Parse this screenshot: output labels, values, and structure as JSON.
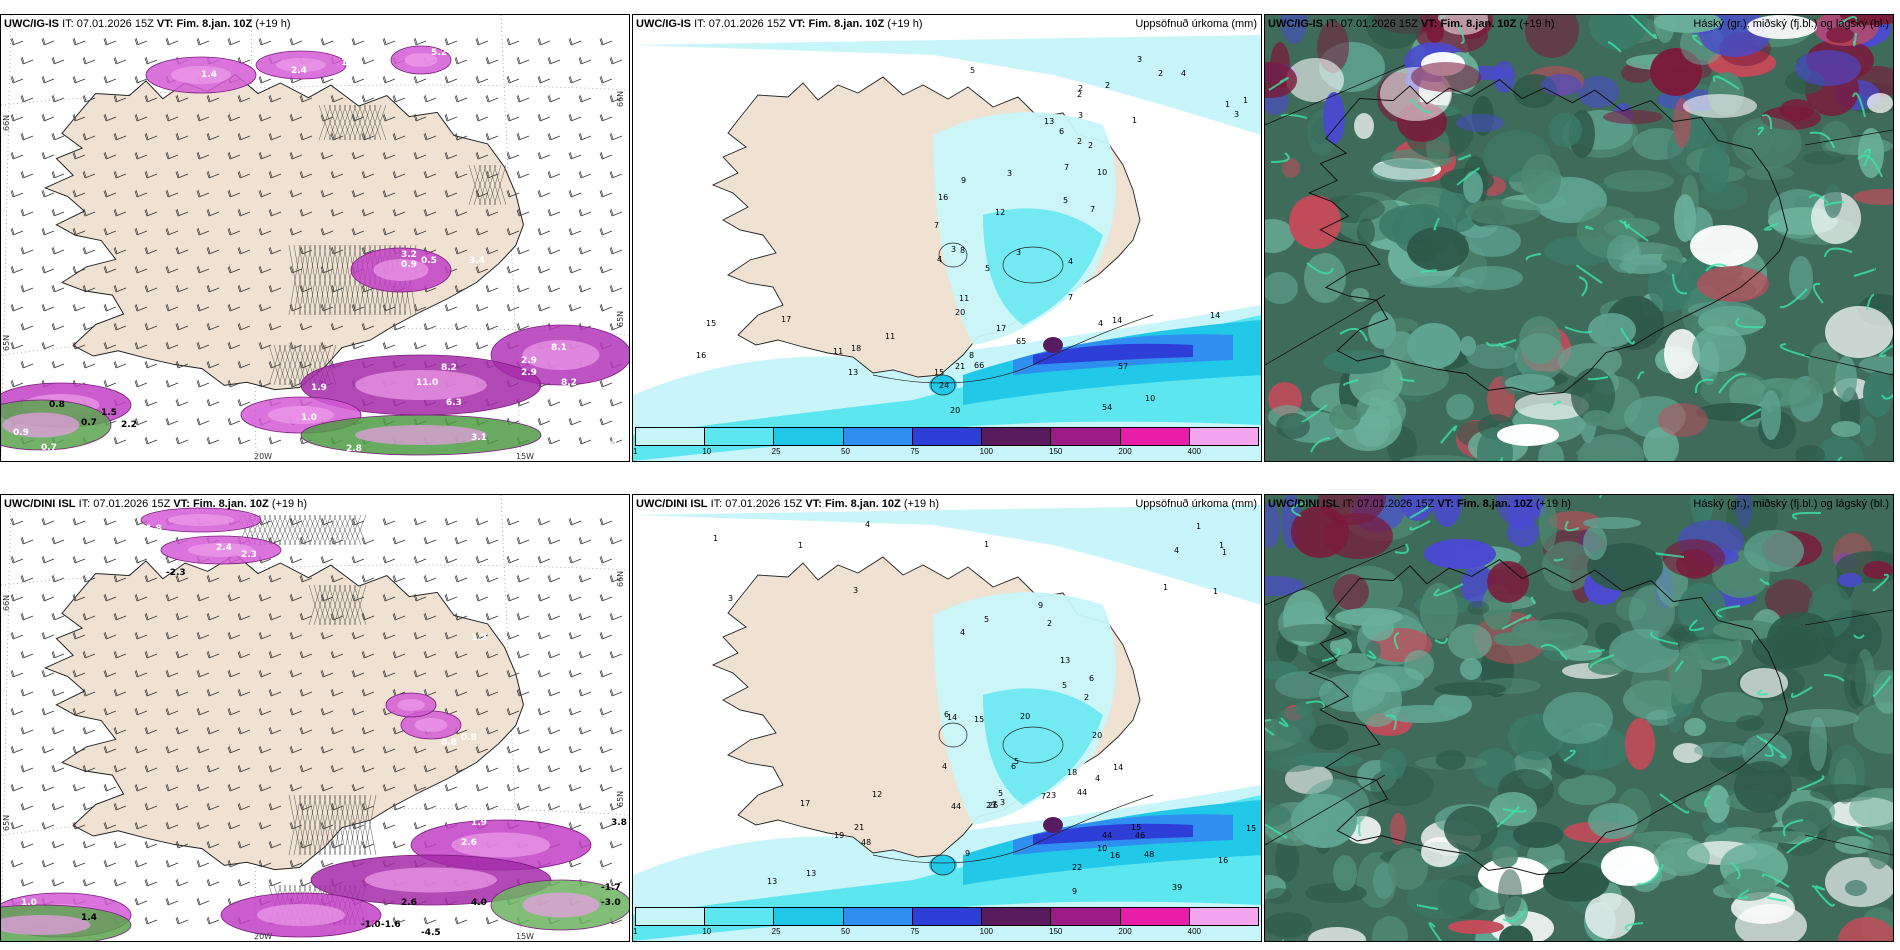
{
  "panels": {
    "top_left": {
      "model": "UWC/IG-IS",
      "it_label": "IT:",
      "it_value": "07.01.2026 15Z",
      "vt_label": "VT:",
      "vt_value": "Fim. 8.jan. 10Z",
      "offset": "(+19 h)"
    },
    "top_mid": {
      "model": "UWC/IG-IS",
      "it_label": "IT:",
      "it_value": "07.01.2026 15Z",
      "vt_label": "VT:",
      "vt_value": "Fim. 8.jan. 10Z",
      "offset": "(+19 h)",
      "right_title": "Uppsöfnuð úrkoma (mm)"
    },
    "top_right": {
      "model": "UWC/IG-IS",
      "it_label": "IT:",
      "it_value": "07.01.2026 15Z",
      "vt_label": "VT:",
      "vt_value": "Fim. 8.jan. 10Z",
      "offset": "(+19 h)",
      "right_title": "Háský (gr.), miðský (fj.bl.) og lágský (bl.)"
    },
    "bot_left": {
      "model": "UWC/DINI ISL",
      "it_label": "IT:",
      "it_value": "07.01.2026 15Z",
      "vt_label": "VT:",
      "vt_value": "Fim. 8.jan. 10Z",
      "offset": "(+19 h)"
    },
    "bot_mid": {
      "model": "UWC/DINI ISL",
      "it_label": "IT:",
      "it_value": "07.01.2026 15Z",
      "vt_label": "VT:",
      "vt_value": "Fim. 8.jan. 10Z",
      "offset": "(+19 h)",
      "right_title": "Uppsöfnuð úrkoma (mm)"
    },
    "bot_right": {
      "model": "UWC/DINI ISL",
      "it_label": "IT:",
      "it_value": "07.01.2026 15Z",
      "vt_label": "VT:",
      "vt_value": "Fim. 8.jan. 10Z",
      "offset": "(+19 h)",
      "right_title": "Háský (gr.), miðský (fj.bl.) og lágský (bl.)"
    }
  },
  "axis_labels": {
    "lat_a": "66N",
    "lat_b": "65N",
    "lon_a": "20W",
    "lon_b": "15W"
  },
  "colorbar": {
    "ticks": [
      "1",
      "10",
      "25",
      "50",
      "75",
      "100",
      "150",
      "200",
      "400"
    ],
    "colors": [
      "#c8f5f9",
      "#5ce6ef",
      "#22c8e8",
      "#2f8ff0",
      "#2e3fd8",
      "#5a1b5e",
      "#9c1a85",
      "#e81ea8",
      "#f3a6ef"
    ]
  },
  "top_left_values": [
    "1.4",
    "2.4",
    "1.8",
    "1.7",
    "5.2",
    "3.2",
    "0.9",
    "0.5",
    "3.4",
    "2.9",
    "8.2",
    "11.0",
    "6.3",
    "1.9",
    "2.9",
    "8.1",
    "8.2",
    "5.3",
    "0.9",
    "0.7",
    "3.1",
    "2.8",
    "1.0",
    "0.9",
    "0.8",
    "0.7",
    "1.5",
    "2.2"
  ],
  "bot_left_values": [
    "1.8",
    "-2.3",
    "2.3",
    "2.4",
    "1.9",
    "1.2",
    "0.8",
    "0.8",
    "1.9",
    "2.6",
    "2.2",
    "-3.0",
    "-1.7",
    "-1.0",
    "-1.6",
    "-4.5",
    "1.0",
    "3.8",
    "2.6",
    "4.0",
    "1.4"
  ],
  "top_mid_values": [
    "2",
    "1",
    "2",
    "1",
    "3",
    "3",
    "4",
    "5",
    "3",
    "1",
    "2",
    "2",
    "4",
    "4",
    "5",
    "4",
    "2",
    "3",
    "2",
    "3",
    "3",
    "7",
    "5",
    "6",
    "7",
    "11",
    "9",
    "7",
    "14",
    "8",
    "10",
    "13",
    "16",
    "7",
    "12",
    "20",
    "65",
    "66",
    "57",
    "54",
    "15",
    "13",
    "17",
    "20",
    "16",
    "11",
    "14",
    "18",
    "21",
    "17",
    "24",
    "11",
    "8",
    "10",
    "15"
  ],
  "bot_mid_values": [
    "1",
    "1",
    "1",
    "1",
    "3",
    "4",
    "4",
    "3",
    "1",
    "1",
    "1",
    "1",
    "2",
    "3",
    "4",
    "4",
    "4",
    "5",
    "5",
    "6",
    "6",
    "14",
    "7",
    "5",
    "5",
    "6",
    "9",
    "2",
    "13",
    "14",
    "15",
    "18",
    "23",
    "20",
    "20",
    "44",
    "44",
    "44",
    "39",
    "48",
    "48",
    "46",
    "26",
    "19",
    "16",
    "16",
    "13",
    "23",
    "21",
    "15",
    "13",
    "9",
    "7",
    "15",
    "22",
    "10",
    "12",
    "17",
    "9"
  ]
}
